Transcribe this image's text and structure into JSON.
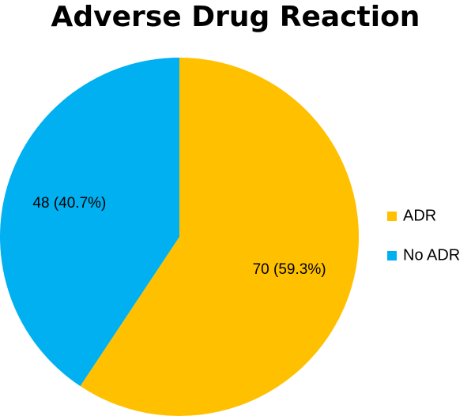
{
  "chart_data": {
    "type": "pie",
    "title": "Adverse Drug Reaction",
    "slices": [
      {
        "name": "ADR",
        "value": 70,
        "label": "70 (59.3%)",
        "color": "#FFC000"
      },
      {
        "name": "No ADR",
        "value": 48,
        "label": "48 (40.7%)",
        "color": "#00B0F0"
      }
    ],
    "start_angle": "12 o'clock",
    "direction": "clockwise",
    "legend_position": "right"
  }
}
